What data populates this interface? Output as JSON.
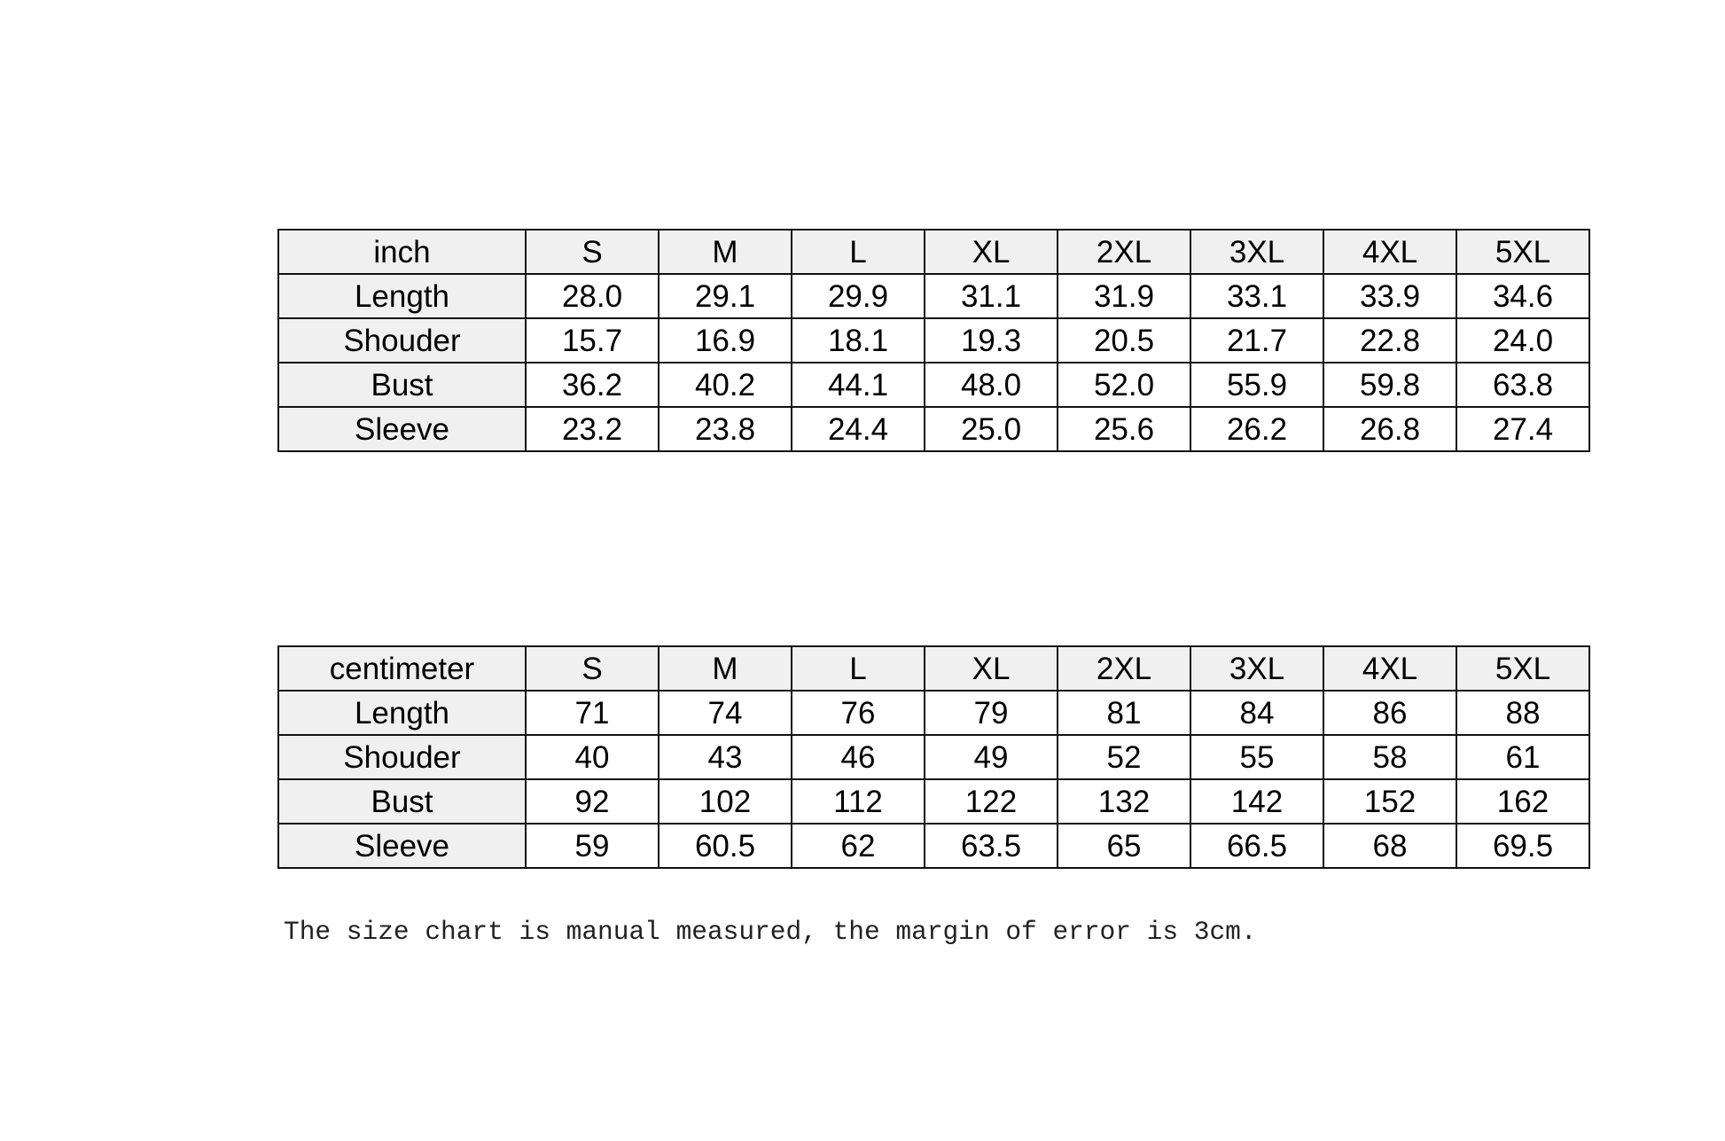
{
  "sizes": [
    "S",
    "M",
    "L",
    "XL",
    "2XL",
    "3XL",
    "4XL",
    "5XL"
  ],
  "tables": [
    {
      "unit": "inch",
      "rows": [
        {
          "label": "Length",
          "values": [
            "28.0",
            "29.1",
            "29.9",
            "31.1",
            "31.9",
            "33.1",
            "33.9",
            "34.6"
          ]
        },
        {
          "label": "Shouder",
          "values": [
            "15.7",
            "16.9",
            "18.1",
            "19.3",
            "20.5",
            "21.7",
            "22.8",
            "24.0"
          ]
        },
        {
          "label": "Bust",
          "values": [
            "36.2",
            "40.2",
            "44.1",
            "48.0",
            "52.0",
            "55.9",
            "59.8",
            "63.8"
          ]
        },
        {
          "label": "Sleeve",
          "values": [
            "23.2",
            "23.8",
            "24.4",
            "25.0",
            "25.6",
            "26.2",
            "26.8",
            "27.4"
          ]
        }
      ]
    },
    {
      "unit": "centimeter",
      "rows": [
        {
          "label": "Length",
          "values": [
            "71",
            "74",
            "76",
            "79",
            "81",
            "84",
            "86",
            "88"
          ]
        },
        {
          "label": "Shouder",
          "values": [
            "40",
            "43",
            "46",
            "49",
            "52",
            "55",
            "58",
            "61"
          ]
        },
        {
          "label": "Bust",
          "values": [
            "92",
            "102",
            "112",
            "122",
            "132",
            "142",
            "152",
            "162"
          ]
        },
        {
          "label": "Sleeve",
          "values": [
            "59",
            "60.5",
            "62",
            "63.5",
            "65",
            "66.5",
            "68",
            "69.5"
          ]
        }
      ]
    }
  ],
  "note": "The size chart is manual measured, the margin of error is 3cm.",
  "colors": {
    "label_bg": "#f0f0f0",
    "border": "#111111"
  }
}
